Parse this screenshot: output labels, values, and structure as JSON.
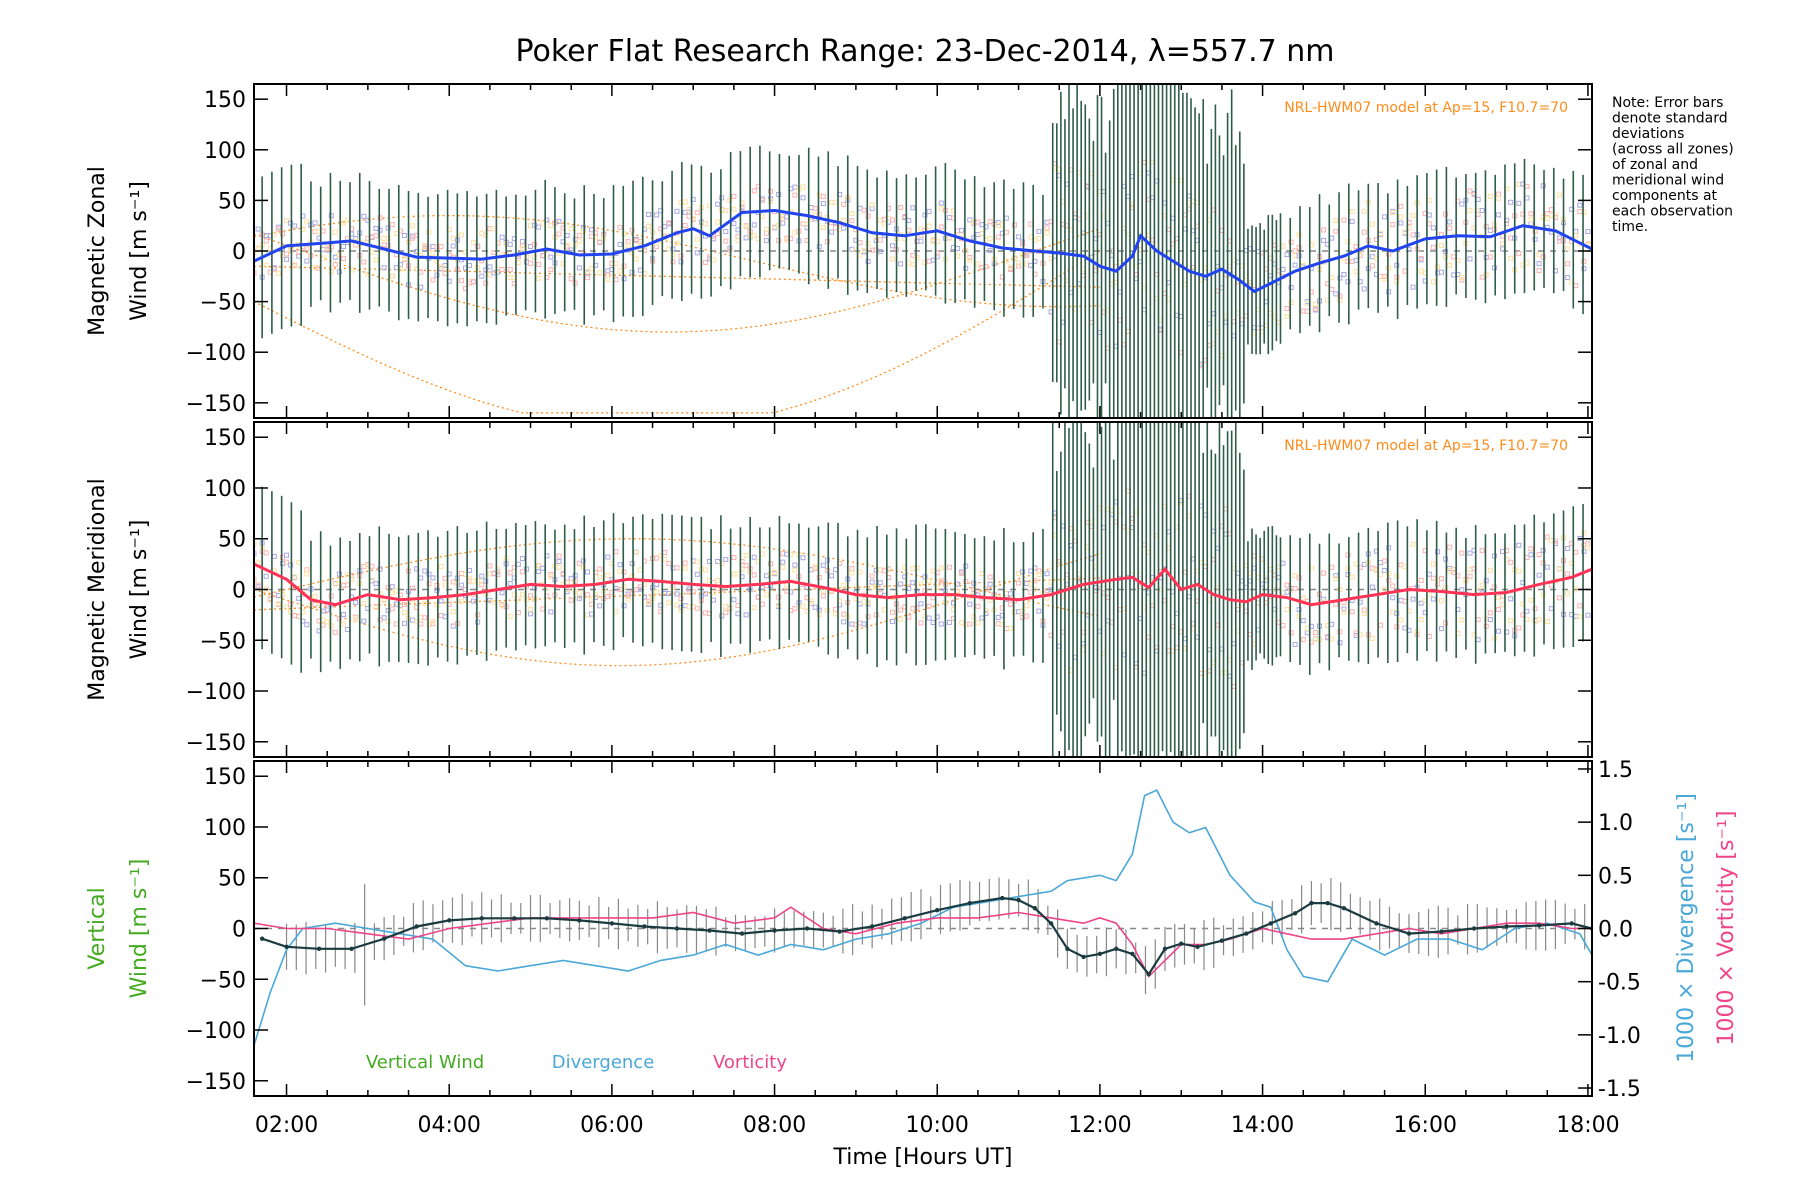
{
  "page": {
    "title": "Poker Flat Research Range: 23-Dec-2014, λ=557.7 nm",
    "note_lines": [
      "Note: Error bars",
      "denote standard",
      "deviations",
      "(across all zones)",
      "of zonal and",
      "meridional wind",
      "components at",
      "each observation",
      "time."
    ],
    "model_label": "NRL-HWM07 model at Ap=15, F10.7=70"
  },
  "colors": {
    "zonal": "#2244ee",
    "meridional": "#ff3355",
    "vertical": "#44aa22",
    "vertical_line": "#1b3b40",
    "divergence": "#4aa8d8",
    "vorticity": "#ee4488",
    "model": "#ff8c1a",
    "errorbar": "#2f5d4a",
    "scatter_lav": "#a8a8e8",
    "scatter_pink": "#ffb0b0",
    "scatter_yel": "#ffe0a0"
  },
  "chart_data": [
    {
      "type": "line",
      "panel": "zonal",
      "ylabel_lines": [
        "Magnetic Zonal",
        "Wind [m s⁻¹]"
      ],
      "xlim": [
        1.6,
        18.05
      ],
      "ylim": [
        -165,
        165
      ],
      "yticks": [
        -150,
        -100,
        -50,
        0,
        50,
        100,
        150
      ],
      "series": [
        {
          "x": [
            1.6,
            2.0,
            2.5,
            2.8,
            3.2,
            3.6,
            4.0,
            4.4,
            4.8,
            5.2,
            5.6,
            6.0,
            6.4,
            6.8,
            7.0,
            7.2,
            7.6,
            8.0,
            8.4,
            8.8,
            9.2,
            9.6,
            10.0,
            10.4,
            10.8,
            11.2,
            11.5,
            11.8,
            12.0,
            12.2,
            12.4,
            12.5,
            12.7,
            12.9,
            13.1,
            13.3,
            13.5,
            13.7,
            13.9,
            14.1,
            14.4,
            14.7,
            15.0,
            15.3,
            15.6,
            16.0,
            16.4,
            16.8,
            17.2,
            17.6,
            18.05
          ],
          "y": [
            -10,
            5,
            8,
            10,
            2,
            -6,
            -7,
            -8,
            -4,
            2,
            -4,
            -3,
            5,
            18,
            22,
            15,
            38,
            40,
            35,
            28,
            18,
            15,
            20,
            10,
            3,
            0,
            -2,
            -5,
            -15,
            -20,
            -5,
            15,
            0,
            -10,
            -20,
            -25,
            -18,
            -28,
            -40,
            -32,
            -20,
            -12,
            -5,
            5,
            0,
            12,
            15,
            14,
            25,
            20,
            2
          ]
        }
      ]
    },
    {
      "type": "line",
      "panel": "meridional",
      "ylabel_lines": [
        "Magnetic Meridional",
        "Wind [m s⁻¹]"
      ],
      "xlim": [
        1.6,
        18.05
      ],
      "ylim": [
        -165,
        165
      ],
      "yticks": [
        -150,
        -100,
        -50,
        0,
        50,
        100,
        150
      ],
      "series": [
        {
          "x": [
            1.6,
            2.0,
            2.3,
            2.6,
            3.0,
            3.4,
            3.8,
            4.2,
            4.6,
            5.0,
            5.4,
            5.8,
            6.2,
            6.6,
            7.0,
            7.4,
            7.8,
            8.2,
            8.6,
            9.0,
            9.4,
            9.8,
            10.2,
            10.6,
            11.0,
            11.4,
            11.8,
            12.2,
            12.4,
            12.6,
            12.8,
            13.0,
            13.2,
            13.4,
            13.6,
            13.8,
            14.0,
            14.3,
            14.6,
            15.0,
            15.4,
            15.8,
            16.2,
            16.6,
            17.0,
            17.4,
            17.8,
            18.05
          ],
          "y": [
            25,
            10,
            -10,
            -15,
            -5,
            -10,
            -8,
            -5,
            0,
            5,
            3,
            5,
            10,
            8,
            5,
            3,
            5,
            8,
            2,
            -5,
            -8,
            -5,
            -5,
            -8,
            -10,
            -5,
            5,
            10,
            12,
            2,
            20,
            0,
            5,
            -5,
            -10,
            -12,
            -5,
            -8,
            -15,
            -10,
            -5,
            0,
            -2,
            -5,
            -3,
            5,
            12,
            20
          ]
        }
      ]
    },
    {
      "type": "line",
      "panel": "vertical",
      "ylabel_lines": [
        "Vertical",
        "Wind [m s⁻¹]"
      ],
      "right_axis_labels": [
        "1000 × Divergence [s⁻¹]",
        "1000 × Vorticity [s⁻¹]"
      ],
      "xlabel": "Time [Hours UT]",
      "xlim": [
        1.6,
        18.05
      ],
      "ylim": [
        -165,
        165
      ],
      "yticks": [
        -150,
        -100,
        -50,
        0,
        50,
        100,
        150
      ],
      "y2lim": [
        -1.575,
        1.575
      ],
      "y2ticks": [
        -1.5,
        -1.0,
        -0.5,
        0.0,
        0.5,
        1.0,
        1.5
      ],
      "xticks": [
        2,
        4,
        6,
        8,
        10,
        12,
        14,
        16,
        18
      ],
      "xtick_labels": [
        "02:00",
        "04:00",
        "06:00",
        "08:00",
        "10:00",
        "12:00",
        "14:00",
        "16:00",
        "18:00"
      ],
      "legend": [
        "Vertical Wind",
        "Divergence",
        "Vorticity"
      ],
      "series": [
        {
          "name": "Vertical Wind",
          "axis": "left",
          "x": [
            1.7,
            2.0,
            2.4,
            2.8,
            3.2,
            3.6,
            4.0,
            4.4,
            4.8,
            5.2,
            5.6,
            6.0,
            6.4,
            6.8,
            7.2,
            7.6,
            8.0,
            8.4,
            8.8,
            9.2,
            9.6,
            10.0,
            10.4,
            10.8,
            11.0,
            11.2,
            11.4,
            11.6,
            11.8,
            12.0,
            12.2,
            12.4,
            12.6,
            12.8,
            13.0,
            13.2,
            13.5,
            13.8,
            14.1,
            14.4,
            14.6,
            14.8,
            15.0,
            15.4,
            15.8,
            16.2,
            16.6,
            17.0,
            17.4,
            17.8,
            18.05
          ],
          "y": [
            -10,
            -18,
            -20,
            -20,
            -10,
            2,
            8,
            10,
            10,
            10,
            8,
            5,
            2,
            0,
            -2,
            -5,
            -2,
            0,
            -3,
            2,
            10,
            18,
            25,
            30,
            28,
            20,
            5,
            -20,
            -28,
            -25,
            -20,
            -25,
            -45,
            -20,
            -15,
            -18,
            -12,
            -5,
            5,
            15,
            25,
            25,
            20,
            5,
            -5,
            -3,
            0,
            2,
            3,
            5,
            0
          ]
        },
        {
          "name": "Divergence",
          "axis": "right",
          "x": [
            1.6,
            1.8,
            2.0,
            2.2,
            2.6,
            3.0,
            3.4,
            3.8,
            4.2,
            4.6,
            5.0,
            5.4,
            5.8,
            6.2,
            6.6,
            7.0,
            7.4,
            7.8,
            8.2,
            8.6,
            9.0,
            9.4,
            9.8,
            10.2,
            10.6,
            11.0,
            11.4,
            11.6,
            12.0,
            12.2,
            12.4,
            12.55,
            12.7,
            12.9,
            13.1,
            13.3,
            13.6,
            13.9,
            14.1,
            14.3,
            14.5,
            14.8,
            15.1,
            15.5,
            15.9,
            16.3,
            16.7,
            17.1,
            17.5,
            17.9,
            18.05
          ],
          "y": [
            -1.1,
            -0.6,
            -0.2,
            0.0,
            0.05,
            0.0,
            -0.05,
            -0.1,
            -0.35,
            -0.4,
            -0.35,
            -0.3,
            -0.35,
            -0.4,
            -0.3,
            -0.25,
            -0.15,
            -0.25,
            -0.15,
            -0.2,
            -0.1,
            -0.05,
            0.05,
            0.2,
            0.25,
            0.3,
            0.35,
            0.45,
            0.5,
            0.45,
            0.7,
            1.25,
            1.3,
            1.0,
            0.9,
            0.95,
            0.5,
            0.25,
            0.2,
            -0.2,
            -0.45,
            -0.5,
            -0.1,
            -0.25,
            -0.1,
            -0.1,
            -0.2,
            0.0,
            0.05,
            -0.05,
            -0.25
          ]
        },
        {
          "name": "Vorticity",
          "axis": "right",
          "x": [
            1.6,
            2.0,
            2.5,
            3.0,
            3.5,
            4.0,
            4.5,
            5.0,
            5.5,
            6.0,
            6.5,
            7.0,
            7.5,
            8.0,
            8.2,
            8.6,
            9.0,
            9.5,
            10.0,
            10.5,
            11.0,
            11.4,
            11.8,
            12.0,
            12.2,
            12.4,
            12.6,
            12.8,
            13.0,
            13.3,
            13.6,
            14.0,
            14.3,
            14.6,
            15.0,
            15.4,
            15.8,
            16.2,
            16.6,
            17.0,
            17.4,
            17.8,
            18.05
          ],
          "y": [
            0.05,
            0.0,
            0.0,
            -0.05,
            -0.1,
            0.0,
            0.05,
            0.1,
            0.1,
            0.1,
            0.1,
            0.15,
            0.05,
            0.1,
            0.2,
            0.0,
            -0.05,
            0.05,
            0.1,
            0.1,
            0.15,
            0.1,
            0.05,
            0.1,
            0.05,
            -0.15,
            -0.45,
            -0.3,
            -0.15,
            -0.15,
            -0.1,
            0.0,
            -0.05,
            -0.1,
            -0.1,
            -0.05,
            0.0,
            -0.05,
            0.0,
            0.05,
            0.05,
            0.0,
            0.0
          ]
        }
      ]
    }
  ]
}
